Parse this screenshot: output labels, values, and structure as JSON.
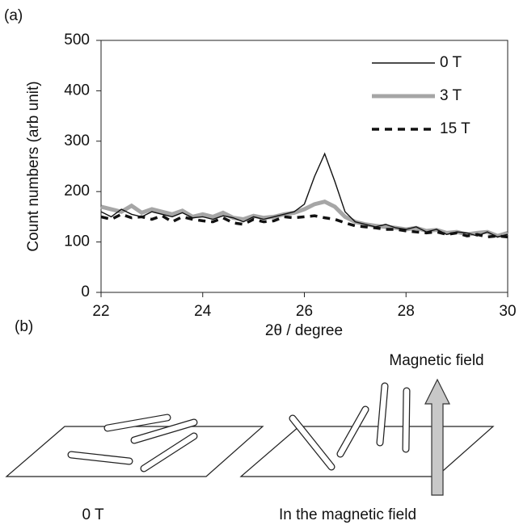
{
  "chart_data": {
    "type": "line",
    "panel_label": "(a)",
    "ylabel": "Count numbers (arb unit)",
    "xlabel": "2θ / degree",
    "x": [
      22,
      22.2,
      22.4,
      22.6,
      22.8,
      23,
      23.2,
      23.4,
      23.6,
      23.8,
      24,
      24.2,
      24.4,
      24.6,
      24.8,
      25,
      25.2,
      25.4,
      25.6,
      25.8,
      26,
      26.2,
      26.4,
      26.6,
      26.8,
      27,
      27.2,
      27.4,
      27.6,
      27.8,
      28,
      28.2,
      28.4,
      28.6,
      28.8,
      29,
      29.2,
      29.4,
      29.6,
      29.8,
      30
    ],
    "series": [
      {
        "name": "0 T",
        "color": "#111111",
        "values": [
          160,
          150,
          165,
          155,
          150,
          160,
          155,
          150,
          158,
          148,
          150,
          145,
          152,
          148,
          140,
          150,
          145,
          150,
          155,
          160,
          175,
          230,
          275,
          220,
          160,
          140,
          135,
          130,
          135,
          128,
          125,
          130,
          120,
          125,
          115,
          120,
          118,
          112,
          120,
          110,
          115
        ]
      },
      {
        "name": "3 T",
        "color": "#a6a6a6",
        "values": [
          170,
          165,
          160,
          172,
          158,
          165,
          160,
          155,
          162,
          150,
          155,
          150,
          158,
          148,
          145,
          152,
          148,
          150,
          155,
          158,
          165,
          175,
          180,
          170,
          150,
          140,
          135,
          132,
          130,
          128,
          125,
          128,
          122,
          124,
          118,
          120,
          115,
          118,
          120,
          112,
          118
        ]
      },
      {
        "name": "15 T",
        "color": "#111111",
        "values": [
          150,
          145,
          155,
          148,
          150,
          145,
          152,
          140,
          150,
          145,
          142,
          140,
          148,
          138,
          135,
          145,
          140,
          142,
          150,
          148,
          150,
          152,
          148,
          145,
          138,
          132,
          130,
          128,
          125,
          125,
          122,
          120,
          118,
          120,
          115,
          118,
          112,
          115,
          110,
          112,
          110
        ]
      }
    ],
    "xlim": [
      22,
      30
    ],
    "xticks": [
      22,
      24,
      26,
      28,
      30
    ],
    "ylim": [
      0,
      500
    ],
    "yticks": [
      0,
      100,
      200,
      300,
      400,
      500
    ],
    "legend": "upper right"
  },
  "diagram": {
    "panel_label": "(b)",
    "arrow_label": "Magnetic field",
    "left_caption": "0 T",
    "right_caption": "In the magnetic field"
  }
}
